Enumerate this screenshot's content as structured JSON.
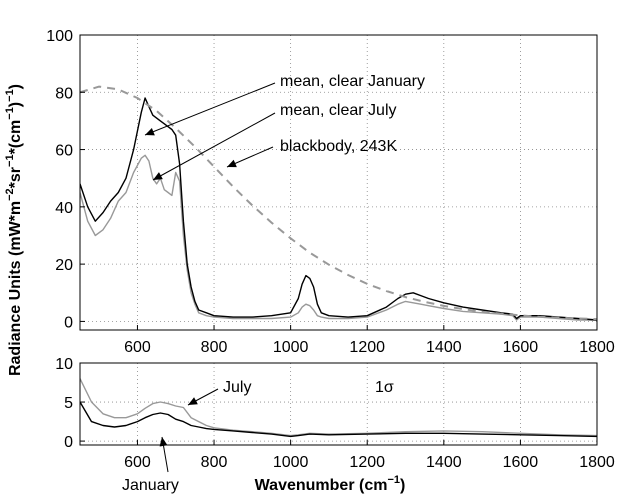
{
  "figure": {
    "ylabel_text": "Radiance Units (mW*m",
    "ylabel_exp1": "−2",
    "ylabel_mid1": "*sr",
    "ylabel_exp2": "−1",
    "ylabel_mid2": "*(cm",
    "ylabel_exp3": "−1",
    "ylabel_end": ")",
    "ylabel_exp4": "−1",
    "ylabel_close": ")",
    "xlabel_text": "Wavenumber (cm",
    "xlabel_exp": "−1",
    "xlabel_close": ")"
  },
  "chart_data": [
    {
      "type": "line",
      "panel": "top",
      "xlim": [
        450,
        1800
      ],
      "ylim": [
        -3,
        100
      ],
      "x_ticks": [
        600,
        800,
        1000,
        1200,
        1400,
        1600,
        1800
      ],
      "y_ticks": [
        0,
        20,
        40,
        60,
        80,
        100
      ],
      "grid": true,
      "series": [
        {
          "name": "mean, clear January",
          "color": "#000000",
          "x": [
            450,
            470,
            490,
            510,
            530,
            550,
            570,
            590,
            610,
            620,
            630,
            640,
            650,
            660,
            670,
            680,
            690,
            700,
            710,
            720,
            730,
            740,
            750,
            760,
            780,
            800,
            850,
            900,
            950,
            1000,
            1020,
            1030,
            1040,
            1050,
            1060,
            1070,
            1080,
            1100,
            1150,
            1200,
            1250,
            1280,
            1300,
            1320,
            1340,
            1360,
            1400,
            1450,
            1500,
            1550,
            1580,
            1590,
            1600,
            1650,
            1700,
            1750,
            1800
          ],
          "y": [
            48,
            40,
            35,
            38,
            42,
            45,
            50,
            60,
            73,
            78,
            75,
            72,
            71,
            70,
            69,
            68,
            67,
            65,
            55,
            35,
            20,
            12,
            7,
            4,
            3,
            2,
            1.5,
            1.5,
            2,
            3,
            8,
            13,
            16,
            15,
            12,
            6,
            3,
            2,
            1.5,
            2,
            5,
            8,
            9.5,
            10,
            9,
            8,
            6.5,
            5,
            4,
            3,
            2.5,
            1,
            2,
            2,
            1.5,
            1,
            0.5
          ]
        },
        {
          "name": "mean, clear July",
          "color": "#999999",
          "x": [
            450,
            470,
            490,
            510,
            530,
            550,
            570,
            590,
            610,
            620,
            630,
            640,
            650,
            660,
            670,
            680,
            690,
            700,
            710,
            720,
            730,
            740,
            750,
            760,
            780,
            800,
            850,
            900,
            950,
            1000,
            1020,
            1030,
            1040,
            1050,
            1060,
            1070,
            1080,
            1100,
            1150,
            1200,
            1250,
            1280,
            1300,
            1320,
            1340,
            1360,
            1400,
            1450,
            1500,
            1550,
            1580,
            1590,
            1600,
            1650,
            1700,
            1750,
            1800
          ],
          "y": [
            45,
            35,
            30,
            32,
            36,
            42,
            45,
            52,
            57,
            58,
            56,
            50,
            48,
            50,
            46,
            45,
            44,
            52,
            49,
            30,
            18,
            10,
            6,
            3,
            2,
            1.5,
            1,
            1,
            1,
            1.5,
            3,
            5,
            6,
            5.5,
            4,
            2,
            1.5,
            1,
            1,
            1.5,
            4,
            6,
            7,
            6.5,
            6,
            5.5,
            4.5,
            3.5,
            3,
            2.5,
            2,
            0.5,
            1.5,
            1.5,
            1,
            0.5,
            0.5
          ]
        },
        {
          "name": "blackbody, 243K",
          "color": "#999999",
          "dashed": true,
          "x": [
            450,
            500,
            550,
            600,
            650,
            700,
            750,
            800,
            850,
            900,
            950,
            1000,
            1050,
            1100,
            1150,
            1200,
            1250,
            1300,
            1350,
            1400,
            1450,
            1500,
            1550,
            1600,
            1650,
            1700,
            1750,
            1800
          ],
          "y": [
            80,
            82,
            81,
            78,
            73.5,
            67.5,
            61,
            54,
            47,
            40.5,
            34.5,
            29,
            24,
            19.8,
            16.2,
            13.1,
            10.6,
            8.5,
            6.8,
            5.4,
            4.3,
            3.4,
            2.7,
            2.1,
            1.6,
            1.3,
            1.0,
            0.8
          ]
        }
      ],
      "annotations": [
        "mean, clear January",
        "mean, clear July",
        "blackbody, 243K"
      ]
    },
    {
      "type": "line",
      "panel": "bottom",
      "xlim": [
        450,
        1800
      ],
      "ylim": [
        -0.5,
        10
      ],
      "x_ticks": [
        600,
        800,
        1000,
        1200,
        1400,
        1600,
        1800
      ],
      "y_ticks": [
        0,
        5,
        10
      ],
      "grid": true,
      "series": [
        {
          "name": "January",
          "color": "#000000",
          "x": [
            450,
            480,
            510,
            540,
            570,
            600,
            620,
            640,
            660,
            680,
            700,
            720,
            740,
            760,
            780,
            800,
            850,
            900,
            950,
            1000,
            1020,
            1050,
            1100,
            1200,
            1300,
            1400,
            1500,
            1600,
            1700,
            1800
          ],
          "y": [
            5,
            2.5,
            2,
            1.8,
            2,
            2.5,
            3,
            3.4,
            3.6,
            3.4,
            2.8,
            2.5,
            2,
            1.8,
            1.6,
            1.5,
            1.3,
            1.1,
            0.9,
            0.6,
            0.7,
            0.9,
            0.8,
            0.9,
            1.0,
            1.0,
            0.9,
            0.8,
            0.7,
            0.6
          ]
        },
        {
          "name": "July",
          "color": "#999999",
          "x": [
            450,
            480,
            510,
            540,
            570,
            600,
            620,
            640,
            660,
            680,
            700,
            720,
            740,
            760,
            780,
            800,
            850,
            900,
            950,
            1000,
            1020,
            1050,
            1100,
            1200,
            1300,
            1400,
            1500,
            1600,
            1700,
            1800
          ],
          "y": [
            8,
            5,
            3.5,
            3,
            3,
            3.5,
            4.2,
            4.8,
            5,
            4.8,
            4.5,
            4.3,
            3,
            2.5,
            2,
            1.7,
            1.4,
            1.2,
            1.0,
            0.7,
            0.8,
            1.0,
            0.9,
            1.0,
            1.2,
            1.3,
            1.2,
            1.0,
            0.8,
            0.7
          ]
        }
      ],
      "annotations": [
        "July",
        "1σ",
        "January"
      ]
    }
  ]
}
